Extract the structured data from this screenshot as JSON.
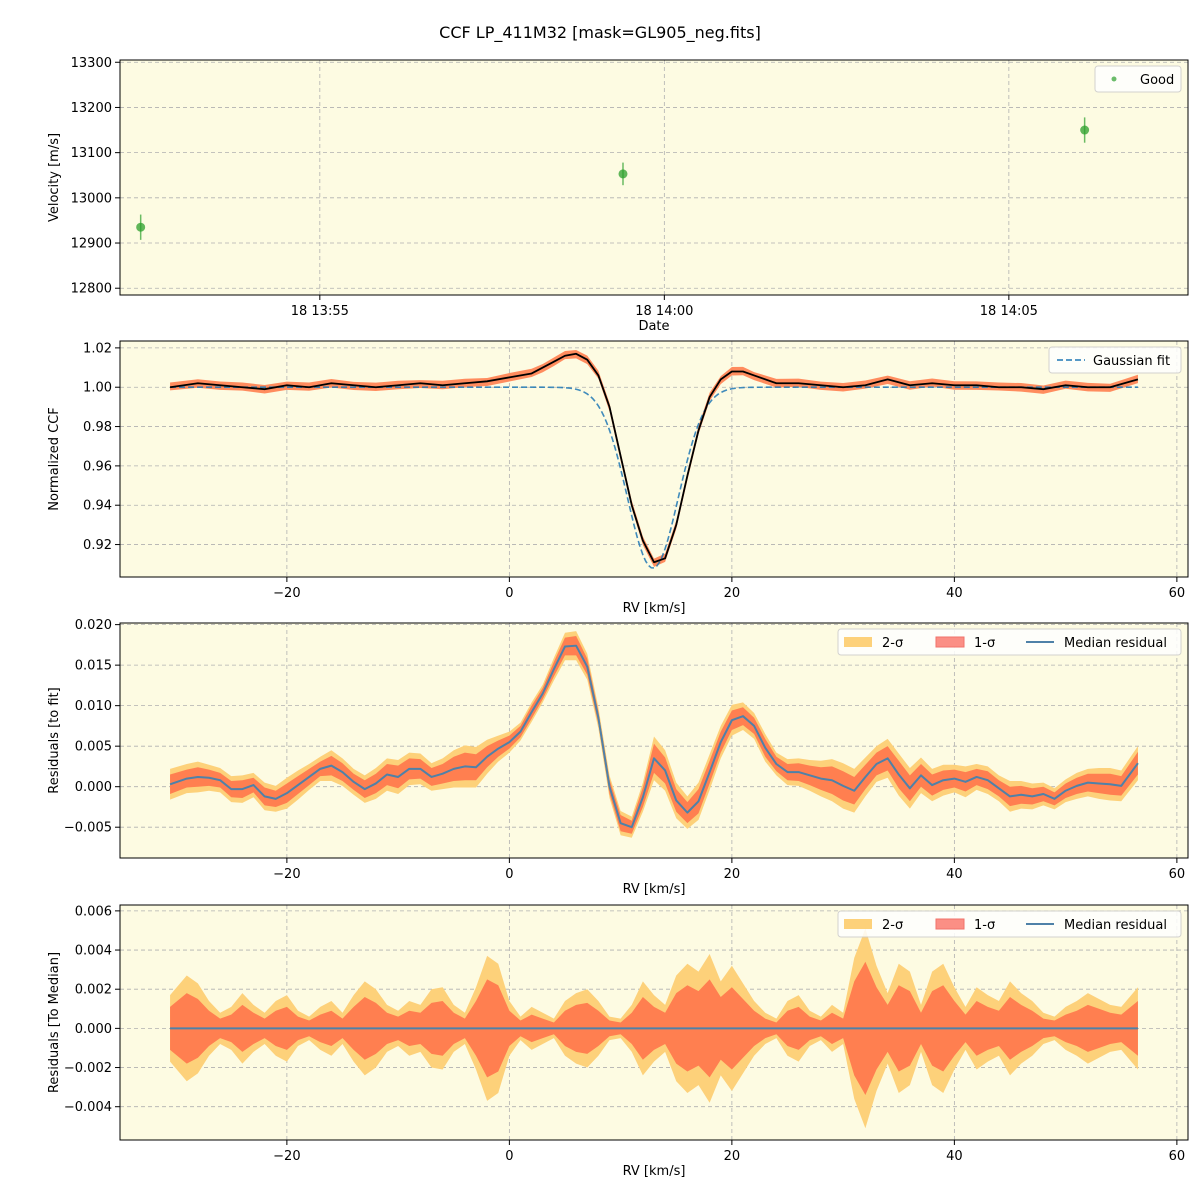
{
  "title": "CCF LP_411M32 [mask=GL905_neg.fits]",
  "colors": {
    "panel_bg": "#fdfbe2",
    "good": "#2ca02c",
    "fit": "#1f77b4",
    "ccf": "#000000",
    "sigma2": "#fdd17a",
    "sigma1": "#ff7f50",
    "median": "#4f81a8",
    "grid": "#b0b0b0"
  },
  "chart_data": [
    {
      "type": "scatter",
      "xlabel": "Date",
      "ylabel": "Velocity [m/s]",
      "xlim_min": [
        -2.9,
        12.6
      ],
      "ylim": [
        12785,
        13305
      ],
      "xticks_min": [
        0,
        5,
        10
      ],
      "xticklabels": [
        "18 13:55",
        "18 14:00",
        "18 14:05"
      ],
      "yticks": [
        12800,
        12900,
        13000,
        13100,
        13200,
        13300
      ],
      "legend": [
        "Good"
      ],
      "legend_loc": "top-right",
      "grid": true,
      "points": [
        {
          "t_min": -2.6,
          "v": 12935,
          "err": 28
        },
        {
          "t_min": 4.4,
          "v": 13053,
          "err": 25
        },
        {
          "t_min": 11.1,
          "v": 13150,
          "err": 28
        }
      ]
    },
    {
      "type": "line",
      "xlabel": "RV [km/s]",
      "ylabel": "Normalized CCF",
      "xlim": [
        -35,
        61
      ],
      "ylim": [
        0.9035,
        1.0235
      ],
      "xticks": [
        -20,
        0,
        20,
        40,
        60
      ],
      "yticks": [
        0.92,
        0.94,
        0.96,
        0.98,
        1.0,
        1.02
      ],
      "legend": [
        "Gaussian fit"
      ],
      "legend_loc": "top-right",
      "grid": true,
      "ccf_x": [
        -30.5,
        -28,
        -26,
        -24,
        -22,
        -20,
        -18,
        -16,
        -14,
        -12,
        -10,
        -8,
        -6,
        -4,
        -2,
        0,
        2,
        3,
        4,
        5,
        6,
        7,
        8,
        9,
        10,
        11,
        12,
        13,
        14,
        15,
        16,
        17,
        18,
        19,
        20,
        21,
        22,
        24,
        26,
        28,
        30,
        32,
        34,
        36,
        38,
        40,
        42,
        44,
        46,
        48,
        50,
        52,
        54,
        56.5
      ],
      "ccf_y": [
        1.0,
        1.002,
        1.001,
        1.0,
        0.999,
        1.001,
        1.0,
        1.002,
        1.001,
        1.0,
        1.001,
        1.002,
        1.001,
        1.002,
        1.003,
        1.005,
        1.007,
        1.01,
        1.013,
        1.016,
        1.017,
        1.014,
        1.006,
        0.99,
        0.965,
        0.94,
        0.922,
        0.911,
        0.913,
        0.93,
        0.955,
        0.978,
        0.995,
        1.004,
        1.008,
        1.008,
        1.006,
        1.002,
        1.002,
        1.001,
        1.0,
        1.001,
        1.004,
        1.001,
        1.002,
        1.001,
        1.001,
        1.0,
        1.0,
        0.999,
        1.001,
        1.0,
        1.0,
        1.004
      ],
      "fit": {
        "center": 12.9,
        "depth": 0.092,
        "sigma": 2.3,
        "baseline": 1.0
      }
    },
    {
      "type": "area",
      "xlabel": "RV [km/s]",
      "ylabel": "Residuals [to fit]",
      "xlim": [
        -35,
        61
      ],
      "ylim": [
        -0.0088,
        0.0202
      ],
      "xticks": [
        -20,
        0,
        20,
        40,
        60
      ],
      "yticks": [
        -0.005,
        0.0,
        0.005,
        0.01,
        0.015,
        0.02
      ],
      "yticklabels": [
        "−0.005",
        "0.000",
        "0.005",
        "0.010",
        "0.015",
        "0.020"
      ],
      "legend": [
        "2-σ",
        "1-σ",
        "Median residual"
      ],
      "legend_loc": "top-right",
      "grid": true,
      "x": [
        -30.5,
        -29,
        -28,
        -27,
        -26,
        -25,
        -24,
        -23,
        -22,
        -21,
        -20,
        -19,
        -18,
        -17,
        -16,
        -15,
        -14,
        -13,
        -12,
        -11,
        -10,
        -9,
        -8,
        -7,
        -6,
        -5,
        -4,
        -3,
        -2,
        -1,
        0,
        1,
        2,
        3,
        4,
        5,
        6,
        7,
        8,
        9,
        10,
        11,
        12,
        13,
        14,
        15,
        16,
        17,
        18,
        19,
        20,
        21,
        22,
        23,
        24,
        25,
        26,
        27,
        28,
        29,
        30,
        31,
        32,
        33,
        34,
        35,
        36,
        37,
        38,
        39,
        40,
        41,
        42,
        43,
        44,
        45,
        46,
        47,
        48,
        49,
        50,
        51,
        52,
        53,
        54,
        55,
        56.5
      ],
      "median": [
        0.0003,
        0.001,
        0.0012,
        0.0011,
        0.0008,
        -0.0003,
        -0.0003,
        0.0002,
        -0.0012,
        -0.0015,
        -0.0008,
        0.0002,
        0.0012,
        0.0022,
        0.0026,
        0.0018,
        0.0006,
        -0.0003,
        0.0004,
        0.0015,
        0.0012,
        0.0022,
        0.0022,
        0.0012,
        0.0016,
        0.0022,
        0.0025,
        0.0024,
        0.0037,
        0.0047,
        0.0055,
        0.0068,
        0.0092,
        0.0115,
        0.0145,
        0.0173,
        0.0174,
        0.0148,
        0.0085,
        0.0,
        -0.0045,
        -0.005,
        -0.0013,
        0.0035,
        0.002,
        -0.0017,
        -0.0032,
        -0.0018,
        0.0018,
        0.0055,
        0.0082,
        0.0087,
        0.0075,
        0.0048,
        0.0028,
        0.0018,
        0.0018,
        0.0014,
        0.001,
        0.0008,
        0.0001,
        -0.0005,
        0.0012,
        0.0028,
        0.0035,
        0.0015,
        -0.0002,
        0.0014,
        0.0002,
        0.0008,
        0.001,
        0.0006,
        0.0012,
        0.0008,
        -0.0002,
        -0.0012,
        -0.001,
        -0.0012,
        -0.0009,
        -0.0015,
        -0.0005,
        0.0001,
        0.0005,
        0.0004,
        0.0003,
        0.0001,
        0.0029
      ],
      "sigma1": [
        0.0012,
        0.0011,
        0.0012,
        0.001,
        0.0009,
        0.001,
        0.0011,
        0.0009,
        0.0011,
        0.001,
        0.0012,
        0.0011,
        0.001,
        0.0009,
        0.0012,
        0.0011,
        0.001,
        0.0011,
        0.0012,
        0.0013,
        0.0014,
        0.0013,
        0.0012,
        0.0011,
        0.0012,
        0.0015,
        0.0017,
        0.0016,
        0.0013,
        0.001,
        0.0008,
        0.0007,
        0.0008,
        0.0007,
        0.0009,
        0.0011,
        0.0012,
        0.001,
        0.0008,
        0.0009,
        0.001,
        0.0008,
        0.0012,
        0.0018,
        0.0016,
        0.0014,
        0.0013,
        0.0015,
        0.0014,
        0.0013,
        0.0012,
        0.0011,
        0.001,
        0.0011,
        0.0009,
        0.001,
        0.0011,
        0.0012,
        0.0014,
        0.0017,
        0.0018,
        0.0017,
        0.0015,
        0.0014,
        0.0015,
        0.0017,
        0.0016,
        0.0014,
        0.0013,
        0.0012,
        0.0011,
        0.0012,
        0.001,
        0.0011,
        0.001,
        0.0012,
        0.0011,
        0.001,
        0.0009,
        0.0008,
        0.0009,
        0.001,
        0.0011,
        0.0012,
        0.0013,
        0.0012,
        0.0014
      ],
      "sigma2": [
        0.0019,
        0.0018,
        0.0019,
        0.0016,
        0.0015,
        0.0016,
        0.0017,
        0.0015,
        0.0017,
        0.0016,
        0.0019,
        0.0018,
        0.0016,
        0.0015,
        0.0019,
        0.0017,
        0.0016,
        0.0017,
        0.0019,
        0.002,
        0.0021,
        0.002,
        0.0019,
        0.0017,
        0.0019,
        0.0023,
        0.0026,
        0.0025,
        0.0021,
        0.0016,
        0.0013,
        0.0011,
        0.0012,
        0.0011,
        0.0014,
        0.0017,
        0.0018,
        0.0016,
        0.0013,
        0.0014,
        0.0015,
        0.0013,
        0.0018,
        0.0027,
        0.0025,
        0.0022,
        0.002,
        0.0023,
        0.0022,
        0.002,
        0.0019,
        0.0017,
        0.0016,
        0.0017,
        0.0014,
        0.0016,
        0.0017,
        0.0019,
        0.0022,
        0.0026,
        0.0028,
        0.0027,
        0.0024,
        0.0022,
        0.0024,
        0.0026,
        0.0025,
        0.0022,
        0.002,
        0.0019,
        0.0017,
        0.0019,
        0.0016,
        0.0017,
        0.0016,
        0.0019,
        0.0017,
        0.0016,
        0.0014,
        0.0013,
        0.0014,
        0.0016,
        0.0017,
        0.0019,
        0.002,
        0.0019,
        0.0021
      ]
    },
    {
      "type": "area",
      "xlabel": "RV [km/s]",
      "ylabel": "Residuals [To Median]",
      "xlim": [
        -35,
        61
      ],
      "ylim": [
        -0.0057,
        0.0063
      ],
      "xticks": [
        -20,
        0,
        20,
        40,
        60
      ],
      "yticks": [
        -0.004,
        -0.002,
        0.0,
        0.002,
        0.004,
        0.006
      ],
      "yticklabels": [
        "−0.004",
        "−0.002",
        "0.000",
        "0.002",
        "0.004",
        "0.006"
      ],
      "legend": [
        "2-σ",
        "1-σ",
        "Median residual"
      ],
      "legend_loc": "top-right",
      "grid": true,
      "x": [
        -30.5,
        -29,
        -28,
        -27,
        -26,
        -25,
        -24,
        -23,
        -22,
        -21,
        -20,
        -19,
        -18,
        -17,
        -16,
        -15,
        -14,
        -13,
        -12,
        -11,
        -10,
        -9,
        -8,
        -7,
        -6,
        -5,
        -4,
        -3,
        -2,
        -1,
        0,
        1,
        2,
        3,
        4,
        5,
        6,
        7,
        8,
        9,
        10,
        11,
        12,
        13,
        14,
        15,
        16,
        17,
        18,
        19,
        20,
        21,
        22,
        23,
        24,
        25,
        26,
        27,
        28,
        29,
        30,
        31,
        32,
        33,
        34,
        35,
        36,
        37,
        38,
        39,
        40,
        41,
        42,
        43,
        44,
        45,
        46,
        47,
        48,
        49,
        50,
        51,
        52,
        53,
        54,
        55,
        56.5
      ],
      "median": [
        0,
        0,
        0,
        0,
        0,
        0,
        0,
        0,
        0,
        0,
        0,
        0,
        0,
        0,
        0,
        0,
        0,
        0,
        0,
        0,
        0,
        0,
        0,
        0,
        0,
        0,
        0,
        0,
        0,
        0,
        0,
        0,
        0,
        0,
        0,
        0,
        0,
        0,
        0,
        0,
        0,
        0,
        0,
        0,
        0,
        0,
        0,
        0,
        0,
        0,
        0,
        0,
        0,
        0,
        0,
        0,
        0,
        0,
        0,
        0,
        0,
        0,
        0,
        0,
        0,
        0,
        0,
        0,
        0,
        0,
        0,
        0,
        0,
        0,
        0,
        0,
        0,
        0,
        0,
        0,
        0,
        0,
        0,
        0,
        0,
        0,
        0
      ],
      "sigma1": [
        0.0011,
        0.0018,
        0.0015,
        0.0009,
        0.0005,
        0.0007,
        0.0012,
        0.0008,
        0.0005,
        0.0009,
        0.0011,
        0.0006,
        0.0004,
        0.0007,
        0.0009,
        0.0005,
        0.0011,
        0.0016,
        0.0013,
        0.0008,
        0.0006,
        0.0009,
        0.0008,
        0.0013,
        0.0014,
        0.0008,
        0.0005,
        0.0014,
        0.0025,
        0.0022,
        0.0009,
        0.0004,
        0.0007,
        0.0005,
        0.0003,
        0.0009,
        0.0012,
        0.0013,
        0.0009,
        0.0004,
        0.0003,
        0.0008,
        0.0016,
        0.0011,
        0.0008,
        0.0018,
        0.0022,
        0.0019,
        0.0025,
        0.0016,
        0.0021,
        0.0015,
        0.0009,
        0.0005,
        0.0003,
        0.0009,
        0.0011,
        0.0006,
        0.0004,
        0.0008,
        0.0005,
        0.0024,
        0.0034,
        0.0021,
        0.0012,
        0.0022,
        0.0019,
        0.0008,
        0.0019,
        0.0022,
        0.0014,
        0.0007,
        0.0014,
        0.0011,
        0.0009,
        0.0016,
        0.0012,
        0.0009,
        0.0005,
        0.0004,
        0.0007,
        0.0009,
        0.0012,
        0.001,
        0.0008,
        0.0007,
        0.0014
      ],
      "sigma2": [
        0.0017,
        0.0027,
        0.0023,
        0.0014,
        0.0008,
        0.0011,
        0.0018,
        0.0012,
        0.0008,
        0.0014,
        0.0017,
        0.0009,
        0.0006,
        0.0011,
        0.0014,
        0.0008,
        0.0017,
        0.0024,
        0.002,
        0.0012,
        0.0009,
        0.0014,
        0.0012,
        0.002,
        0.0021,
        0.0012,
        0.0008,
        0.0021,
        0.0037,
        0.0033,
        0.0014,
        0.0006,
        0.0011,
        0.0008,
        0.0005,
        0.0014,
        0.0018,
        0.002,
        0.0014,
        0.0006,
        0.0005,
        0.0012,
        0.0024,
        0.0017,
        0.0012,
        0.0027,
        0.0033,
        0.0029,
        0.0038,
        0.0024,
        0.0032,
        0.0023,
        0.0014,
        0.0008,
        0.0005,
        0.0014,
        0.0017,
        0.0009,
        0.0006,
        0.0012,
        0.0008,
        0.0036,
        0.0051,
        0.0032,
        0.0018,
        0.0033,
        0.0029,
        0.0012,
        0.0029,
        0.0033,
        0.0021,
        0.0011,
        0.0021,
        0.0017,
        0.0014,
        0.0024,
        0.0018,
        0.0014,
        0.0008,
        0.0006,
        0.0011,
        0.0014,
        0.0018,
        0.0015,
        0.0012,
        0.0011,
        0.0021
      ]
    }
  ]
}
